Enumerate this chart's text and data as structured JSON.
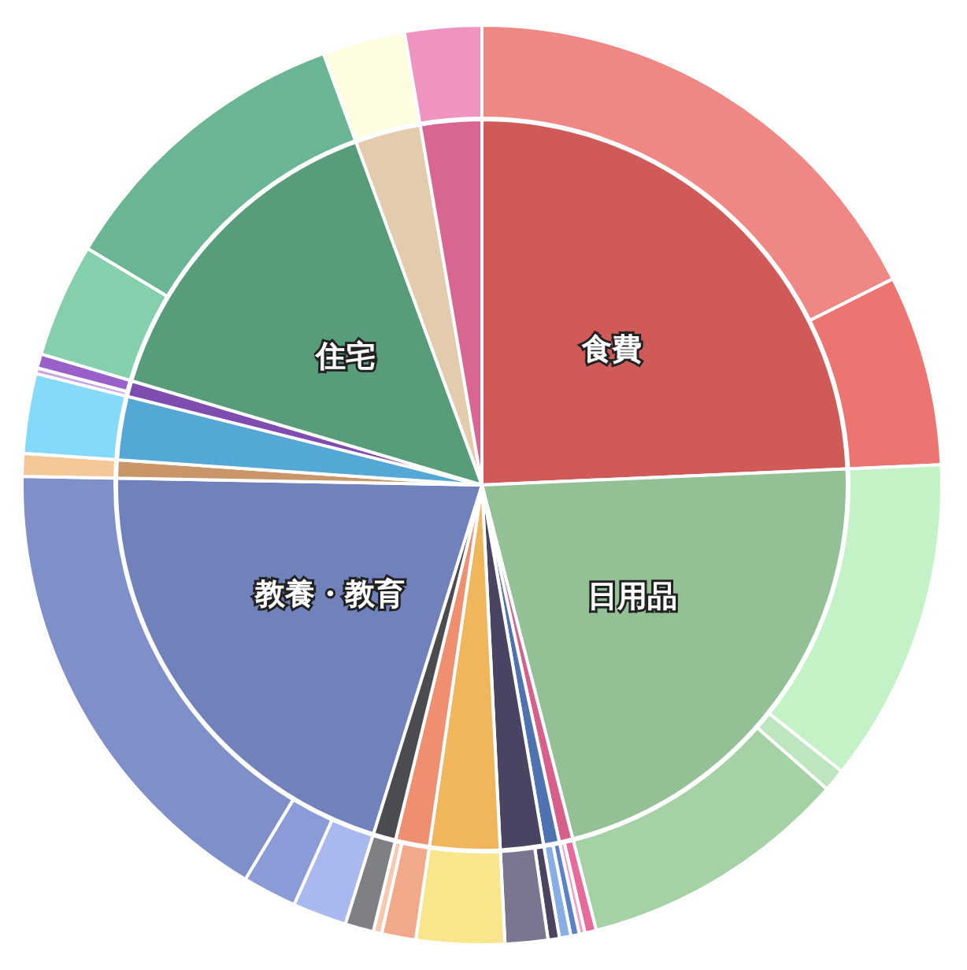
{
  "chart_data": [
    {
      "type": "pie",
      "categories": [
        "食費",
        "日用品",
        null,
        null,
        null,
        null,
        null,
        null,
        "教養・教育",
        null,
        null,
        null,
        "住宅",
        null,
        null
      ],
      "values": [
        24.3,
        21.7,
        0.6,
        0.7,
        1.9,
        3.1,
        1.5,
        1.0,
        20.5,
        0.8,
        2.8,
        0.7,
        14.8,
        2.9,
        2.7
      ],
      "colors": [
        "#cf5a57",
        "#93c195",
        "#d95f8b",
        "#4f72b0",
        "#494462",
        "#efb65c",
        "#ef8f70",
        "#4a4c50",
        "#7081bb",
        "#c99669",
        "#54a8d6",
        "#7f4cb0",
        "#579d79",
        "#e3cbae",
        "#d86592"
      ]
    },
    {
      "type": "donut",
      "categories": [
        null,
        null,
        null,
        null,
        null,
        null,
        null,
        null,
        null,
        null,
        null,
        null,
        null,
        null,
        null,
        null,
        null,
        null,
        null,
        null,
        null,
        null,
        null,
        null,
        null,
        null
      ],
      "values": [
        17.6,
        6.7,
        11.4,
        0.8,
        9.5,
        0.4,
        0.2,
        0.3,
        0.4,
        0.4,
        1.5,
        3.1,
        1.2,
        0.3,
        1.0,
        1.9,
        1.9,
        16.7,
        0.8,
        2.8,
        0.2,
        0.5,
        4.0,
        10.8,
        2.9,
        2.7
      ],
      "colors": [
        "#ef8785",
        "#ec7471",
        "#c2f2c6",
        "#bde6c0",
        "#a4d2a5",
        "#e86a9a",
        "#f2a0c3",
        "#5b82c8",
        "#86aee4",
        "#4a4461",
        "#7b758f",
        "#f9e58c",
        "#f2a98a",
        "#f7c7b0",
        "#7f8084",
        "#a9b8ef",
        "#8b9bd8",
        "#7f8fca",
        "#f4c797",
        "#85d9f9",
        "#c9a2e6",
        "#9960c9",
        "#84d0ad",
        "#6ab594",
        "#fffde0",
        "#ef94c1"
      ]
    }
  ]
}
